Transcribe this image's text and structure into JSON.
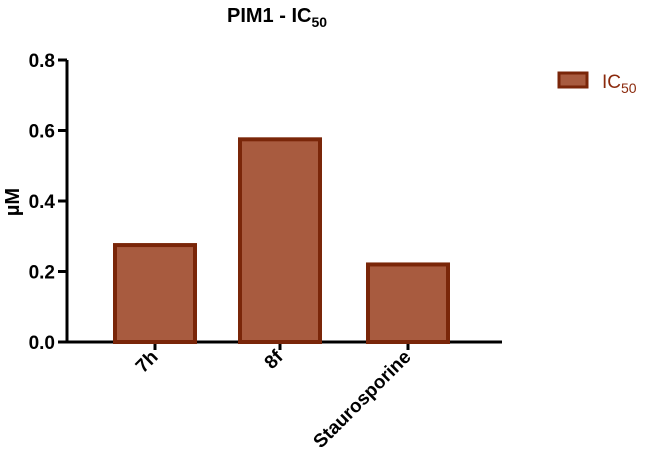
{
  "chart_data": {
    "type": "bar",
    "title": "PIM1 - IC",
    "title_subscript": "50",
    "ylabel": "µM",
    "xlabel": "",
    "categories": [
      "7h",
      "8f",
      "Staurosporine"
    ],
    "series": [
      {
        "name": "IC",
        "name_subscript": "50",
        "values": [
          0.275,
          0.575,
          0.22
        ]
      }
    ],
    "ylim": [
      0,
      0.8
    ],
    "yticks": [
      "0.0",
      "0.2",
      "0.4",
      "0.6",
      "0.8"
    ],
    "grid": false,
    "legend_position": "top-right",
    "bar_fill": "#a85b3f",
    "bar_stroke": "#7a2609"
  }
}
